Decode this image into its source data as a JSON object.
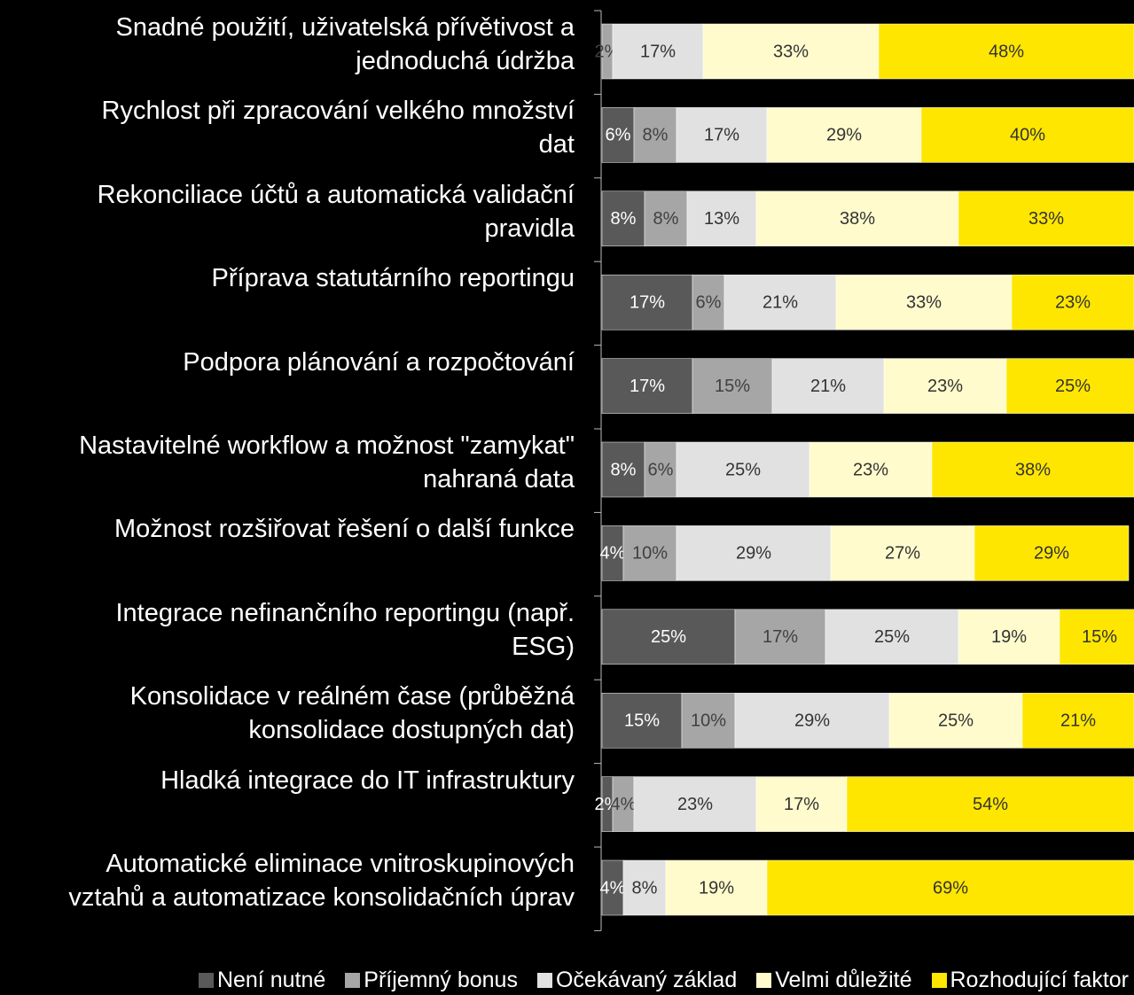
{
  "chart_data": {
    "type": "stacked-bar-horizontal",
    "categories": [
      "Snadné použití, uživatelská přívětivost a\njednoduchá údržba",
      "Rychlost při zpracování velkého množství\ndat",
      "Rekonciliace účtů a automatická validační\npravidla",
      "Příprava statutárního reportingu",
      "Podpora plánování a rozpočtování",
      "Nastavitelné workflow a možnost \"zamykat\"\nnahraná data",
      "Možnost rozšiřovat řešení o další funkce",
      "Integrace nefinančního reportingu (např.\nESG)",
      "Konsolidace v reálném čase (průběžná\nkonsolidace dostupných dat)",
      "Hladká integrace do IT infrastruktury",
      "Automatické eliminace vnitroskupinových\nvztahů a automatizace konsolidačních úprav"
    ],
    "series": [
      {
        "name": "Není nutné",
        "color": "#595959",
        "text_color": "#ffffff",
        "values": [
          null,
          6,
          8,
          17,
          17,
          8,
          4,
          25,
          15,
          2,
          4
        ],
        "value_labels": [
          null,
          "6%",
          "8%",
          "17%",
          "17%",
          "8%",
          "4%",
          "25%",
          "15%",
          "2%",
          "4%"
        ]
      },
      {
        "name": "Příjemný bonus",
        "color": "#a6a6a6",
        "text_color": "#404040",
        "values": [
          2,
          8,
          8,
          6,
          15,
          6,
          10,
          17,
          10,
          4,
          null
        ],
        "value_labels": [
          "2%",
          "8%",
          "8%",
          "6%",
          "15%",
          "6%",
          "10%",
          "17%",
          "10%",
          "4%",
          null
        ]
      },
      {
        "name": "Očekávaný základ",
        "color": "#e1e1e1",
        "text_color": "#333333",
        "values": [
          17,
          17,
          13,
          21,
          21,
          25,
          29,
          25,
          29,
          23,
          8
        ],
        "value_labels": [
          "17%",
          "17%",
          "13%",
          "21%",
          "21%",
          "25%",
          "29%",
          "25%",
          "29%",
          "23%",
          "8%"
        ]
      },
      {
        "name": "Velmi důležité",
        "color": "#fffbcc",
        "text_color": "#333333",
        "values": [
          33,
          29,
          38,
          33,
          23,
          23,
          27,
          19,
          25,
          17,
          19
        ],
        "value_labels": [
          "33%",
          "29%",
          "38%",
          "33%",
          "23%",
          "23%",
          "27%",
          "19%",
          "25%",
          "17%",
          "19%"
        ]
      },
      {
        "name": "Rozhodující faktor",
        "color": "#ffe600",
        "text_color": "#333333",
        "values": [
          48,
          40,
          33,
          23,
          25,
          38,
          29,
          15,
          21,
          54,
          69
        ],
        "value_labels": [
          "48%",
          "40%",
          "33%",
          "23%",
          "25%",
          "38%",
          "29%",
          "15%",
          "21%",
          "54%",
          "69%"
        ]
      }
    ],
    "xlim": [
      0,
      100
    ]
  }
}
